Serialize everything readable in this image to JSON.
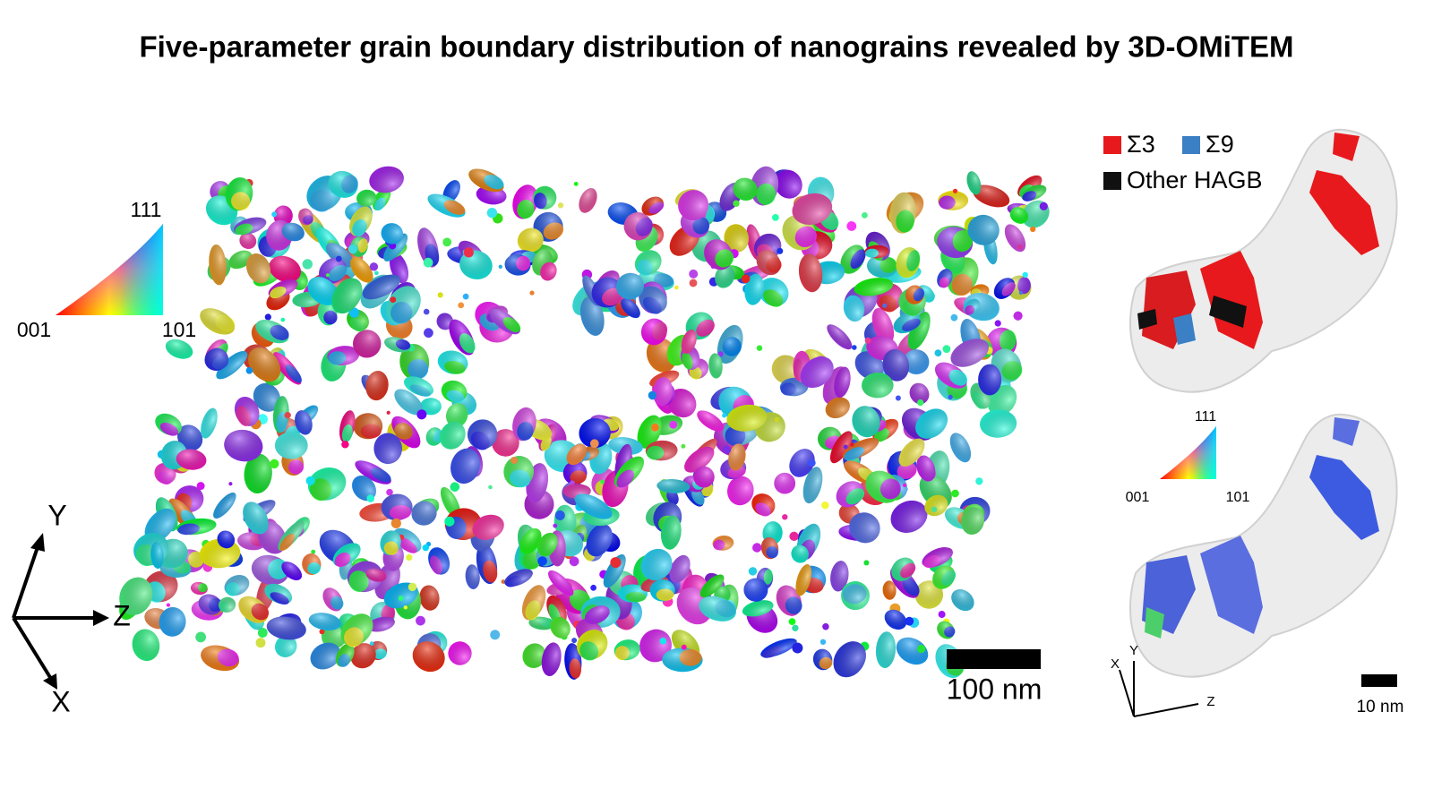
{
  "title": "Five-parameter grain boundary distribution of nanograins revealed by 3D-OMiTEM",
  "ipf_legend": {
    "top": "111",
    "left": "001",
    "right": "101"
  },
  "axes": {
    "y": "Y",
    "z": "Z",
    "x": "X"
  },
  "scale_bar": "100 nm",
  "boundary_legend": [
    {
      "label": "Σ3",
      "color": "#e8191c"
    },
    {
      "label": "Σ9",
      "color": "#3b7fc4"
    },
    {
      "label": "Other HAGB",
      "color": "#111111"
    }
  ],
  "inset_ipf": {
    "top": "111",
    "left": "001",
    "right": "101"
  },
  "inset_axes": {
    "x": "X",
    "y": "Y",
    "z": "Z"
  },
  "inset_scale_bar": "10 nm"
}
